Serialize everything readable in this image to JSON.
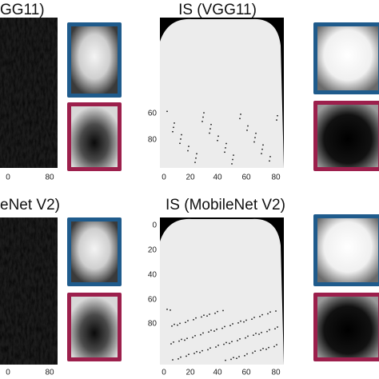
{
  "panels": [
    {
      "title": "GG11)",
      "x_tick_labels": [
        "0",
        "80"
      ]
    },
    {
      "title": "IS (VGG11)",
      "y_tick_labels": [
        "60",
        "80"
      ],
      "x_tick_labels": [
        "0",
        "20",
        "40",
        "60",
        "80"
      ]
    },
    {
      "title": "eNet V2)",
      "x_tick_labels": [
        "0",
        "80"
      ]
    },
    {
      "title": "IS (MobileNet V2)",
      "y_tick_labels": [
        "0",
        "20",
        "40",
        "60",
        "80"
      ],
      "x_tick_labels": [
        "0",
        "20",
        "40",
        "60",
        "80"
      ]
    }
  ]
}
